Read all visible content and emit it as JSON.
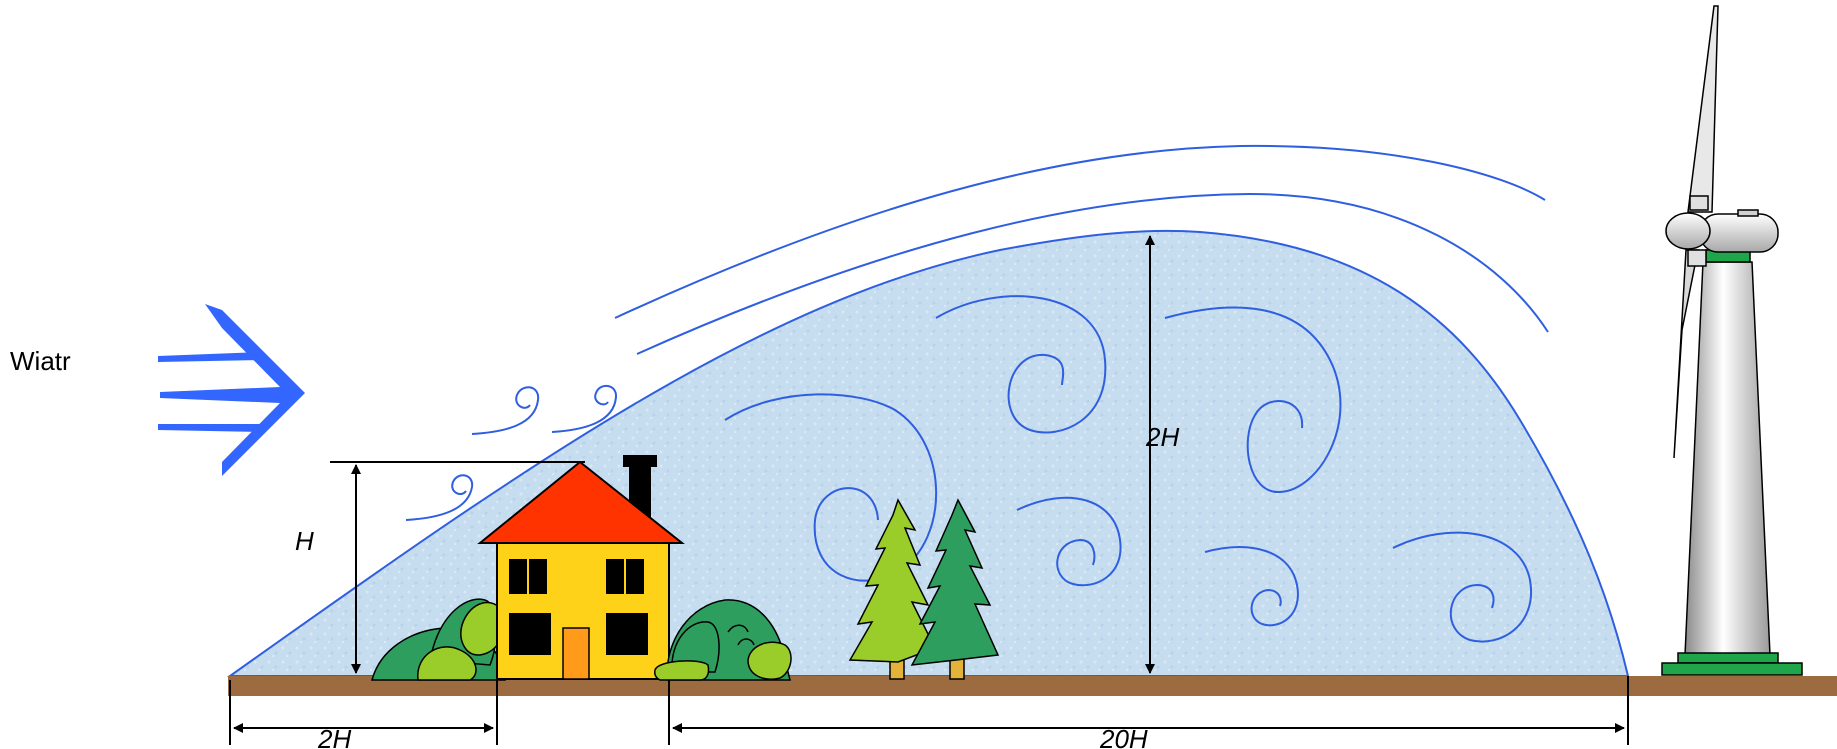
{
  "diagram": {
    "wind_label": "Wiatr",
    "height_label": "H",
    "zone_height_label": "2H",
    "upwind_distance_label": "2H",
    "downwind_distance_label": "20H"
  },
  "colors": {
    "turbulence_fill": "#c6dcef",
    "flow_line": "#2f5fe0",
    "wind_arrow": "#3366ff",
    "ground": "#9c6b3f",
    "house_wall": "#ffd21a",
    "house_roof": "#ff3300",
    "bush_dark": "#2e9e5e",
    "bush_light": "#9acd2a",
    "tree_dark": "#2e9e5e",
    "tree_light": "#9acd2a",
    "turbine_base": "#1fa64a"
  },
  "icons": [
    "wind-arrow-icon",
    "house-icon",
    "bush-icon",
    "spruce-tree-icon",
    "wind-turbine-icon"
  ]
}
